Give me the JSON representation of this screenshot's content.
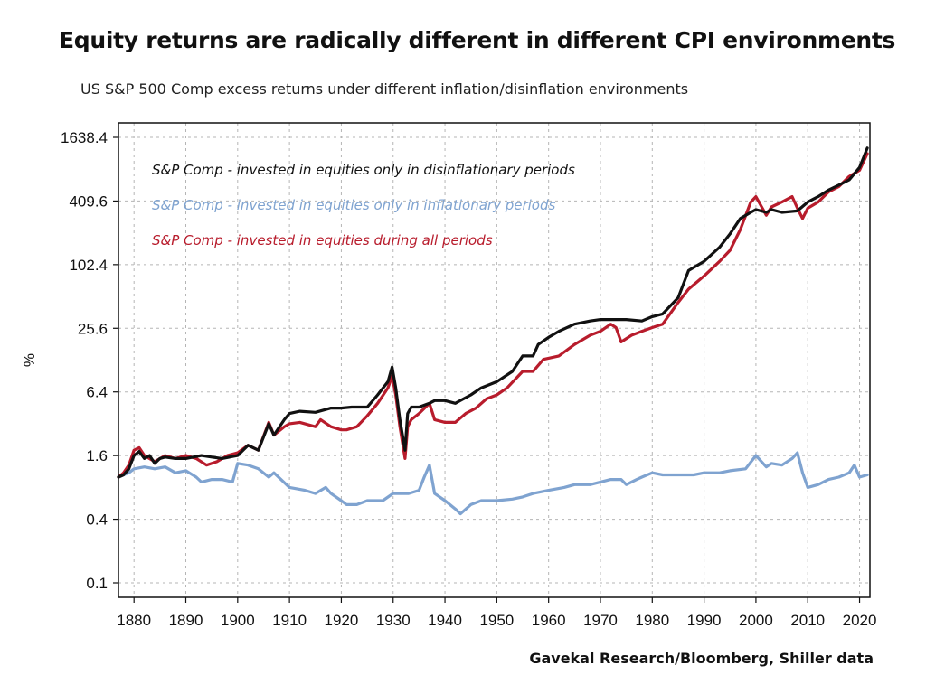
{
  "header": {
    "title": "Equity returns are radically different in different CPI environments",
    "subtitle": "US S&P 500 Comp excess returns under different inflation/disinflation environments"
  },
  "footer": {
    "source": "Gavekal Research/Bloomberg, Shiller data"
  },
  "chart_data": {
    "type": "line",
    "title": "Equity returns are radically different in different CPI environments",
    "subtitle": "US S&P 500 Comp excess returns under different inflation/disinflation environments",
    "xlabel": "",
    "ylabel": "%",
    "y_scale": "log2",
    "grid": true,
    "legend_position": "top-left",
    "xlim": [
      1877,
      2022
    ],
    "ylim": [
      0.1,
      1638.4
    ],
    "x_ticks": [
      1880,
      1890,
      1900,
      1910,
      1920,
      1930,
      1940,
      1950,
      1960,
      1970,
      1980,
      1990,
      2000,
      2010,
      2020
    ],
    "y_ticks": [
      0.1,
      0.4,
      1.6,
      6.4,
      25.6,
      102.4,
      409.6,
      1638.4
    ],
    "y_tick_labels": [
      "0.1",
      "0.4",
      "1.6",
      "6.4",
      "25.6",
      "102.4",
      "409.6",
      "1638.4"
    ],
    "series": [
      {
        "name": "S&P Comp - invested in equities only in disinflationary periods",
        "color": "#111111",
        "x": [
          1877,
          1878,
          1879,
          1880,
          1881,
          1882,
          1883,
          1884,
          1885,
          1886,
          1888,
          1890,
          1893,
          1895,
          1897,
          1900,
          1902,
          1904,
          1906,
          1907,
          1909,
          1910,
          1912,
          1915,
          1918,
          1920,
          1922,
          1925,
          1927,
          1929,
          1929.8,
          1930.5,
          1931.3,
          1932.3,
          1932.8,
          1933.5,
          1935,
          1937,
          1938,
          1940,
          1942,
          1945,
          1947,
          1950,
          1953,
          1955,
          1957,
          1958,
          1960,
          1962,
          1965,
          1968,
          1970,
          1973,
          1975,
          1978,
          1980,
          1982,
          1985,
          1987,
          1990,
          1993,
          1995,
          1997,
          1999,
          2000,
          2002,
          2003,
          2005,
          2008,
          2010,
          2012,
          2014,
          2016,
          2018,
          2020,
          2021.5
        ],
        "y": [
          1.0,
          1.05,
          1.2,
          1.6,
          1.75,
          1.5,
          1.6,
          1.35,
          1.5,
          1.55,
          1.5,
          1.5,
          1.6,
          1.55,
          1.5,
          1.6,
          2.0,
          1.8,
          3.2,
          2.5,
          3.5,
          4.0,
          4.2,
          4.1,
          4.5,
          4.5,
          4.6,
          4.6,
          6.0,
          8.0,
          11.0,
          7.0,
          3.5,
          1.8,
          4.0,
          4.6,
          4.6,
          5.0,
          5.3,
          5.3,
          5.0,
          6.0,
          7.0,
          8.0,
          10.0,
          14.0,
          14.0,
          18.0,
          21.0,
          24.0,
          28.0,
          30.0,
          31.0,
          31.0,
          31.0,
          30.0,
          33.0,
          35.0,
          50.0,
          90.0,
          110.0,
          150.0,
          200.0,
          280.0,
          320.0,
          340.0,
          320.0,
          340.0,
          320.0,
          330.0,
          400.0,
          450.0,
          520.0,
          580.0,
          650.0,
          850.0,
          1300.0
        ]
      },
      {
        "name": "S&P Comp - invested in equities only in inflationary periods",
        "color": "#7fa3d0",
        "x": [
          1877,
          1878,
          1879,
          1880,
          1882,
          1884,
          1886,
          1888,
          1890,
          1892,
          1893,
          1895,
          1897,
          1899,
          1900,
          1902,
          1904,
          1906,
          1907,
          1910,
          1913,
          1915,
          1917,
          1918,
          1920,
          1921,
          1923,
          1925,
          1928,
          1930,
          1932,
          1933,
          1935,
          1936,
          1937,
          1938,
          1940,
          1942,
          1943,
          1945,
          1947,
          1950,
          1953,
          1955,
          1957,
          1960,
          1963,
          1965,
          1968,
          1970,
          1972,
          1974,
          1975,
          1977,
          1978,
          1980,
          1982,
          1985,
          1988,
          1990,
          1993,
          1995,
          1998,
          2000,
          2002,
          2003,
          2005,
          2007,
          2008,
          2009,
          2010,
          2012,
          2014,
          2016,
          2018,
          2019,
          2020,
          2021.5
        ],
        "y": [
          1.0,
          1.05,
          1.1,
          1.2,
          1.25,
          1.2,
          1.25,
          1.1,
          1.15,
          1.0,
          0.9,
          0.95,
          0.95,
          0.9,
          1.35,
          1.3,
          1.2,
          1.0,
          1.1,
          0.8,
          0.75,
          0.7,
          0.8,
          0.7,
          0.6,
          0.55,
          0.55,
          0.6,
          0.6,
          0.7,
          0.7,
          0.7,
          0.75,
          1.0,
          1.3,
          0.7,
          0.6,
          0.5,
          0.45,
          0.55,
          0.6,
          0.6,
          0.62,
          0.65,
          0.7,
          0.75,
          0.8,
          0.85,
          0.85,
          0.9,
          0.95,
          0.95,
          0.85,
          0.95,
          1.0,
          1.1,
          1.05,
          1.05,
          1.05,
          1.1,
          1.1,
          1.15,
          1.2,
          1.6,
          1.25,
          1.35,
          1.3,
          1.5,
          1.7,
          1.1,
          0.8,
          0.85,
          0.95,
          1.0,
          1.1,
          1.3,
          1.0,
          1.05
        ]
      },
      {
        "name": "S&P Comp - invested in equities during all periods",
        "color": "#b81c2c",
        "x": [
          1877,
          1878,
          1879,
          1880,
          1881,
          1882,
          1884,
          1886,
          1888,
          1890,
          1892,
          1894,
          1896,
          1898,
          1900,
          1902,
          1904,
          1906,
          1907,
          1909,
          1910,
          1912,
          1915,
          1916,
          1918,
          1920,
          1921,
          1923,
          1925,
          1927,
          1929,
          1929.8,
          1930.5,
          1931.3,
          1932.3,
          1932.8,
          1933.5,
          1935,
          1937,
          1938,
          1940,
          1942,
          1944,
          1946,
          1948,
          1950,
          1952,
          1955,
          1957,
          1959,
          1962,
          1965,
          1968,
          1970,
          1972,
          1973,
          1974,
          1976,
          1978,
          1980,
          1982,
          1985,
          1987,
          1990,
          1993,
          1995,
          1997,
          1999,
          2000,
          2002,
          2003,
          2005,
          2007,
          2008,
          2009,
          2010,
          2012,
          2014,
          2016,
          2018,
          2020,
          2021.5
        ],
        "y": [
          1.0,
          1.1,
          1.3,
          1.8,
          1.9,
          1.6,
          1.4,
          1.6,
          1.5,
          1.6,
          1.5,
          1.3,
          1.4,
          1.6,
          1.7,
          2.0,
          1.8,
          3.3,
          2.5,
          3.0,
          3.2,
          3.3,
          3.0,
          3.5,
          3.0,
          2.8,
          2.8,
          3.0,
          3.8,
          5.0,
          7.0,
          9.0,
          6.0,
          3.0,
          1.5,
          3.0,
          3.5,
          4.0,
          5.0,
          3.5,
          3.3,
          3.3,
          4.0,
          4.5,
          5.5,
          6.0,
          7.0,
          10.0,
          10.0,
          13.0,
          14.0,
          18.0,
          22.0,
          24.0,
          28.0,
          26.0,
          19.0,
          22.0,
          24.0,
          26.0,
          28.0,
          45.0,
          60.0,
          80.0,
          110.0,
          140.0,
          220.0,
          400.0,
          450.0,
          300.0,
          360.0,
          400.0,
          450.0,
          350.0,
          280.0,
          350.0,
          400.0,
          500.0,
          560.0,
          700.0,
          800.0,
          1150.0
        ]
      }
    ]
  }
}
